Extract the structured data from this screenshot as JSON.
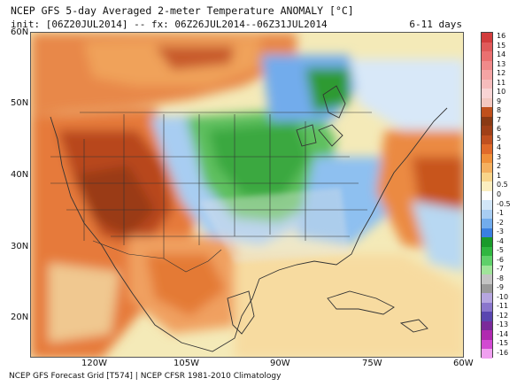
{
  "title": "NCEP GFS 5-day Averaged 2-meter Temperature ANOMALY [°C]",
  "subtitle": "init: [06Z20JUL2014] -- fx: 06Z26JUL2014--06Z31JUL2014",
  "range_label": "6-11 days",
  "credit": "NCEP GFS Forecast Grid [T574] | NCEP CFSR 1981-2010 Climatology",
  "lat_labels": [
    "60N",
    "50N",
    "40N",
    "30N",
    "20N"
  ],
  "lon_labels": [
    "120W",
    "105W",
    "90W",
    "75W",
    "60W"
  ],
  "colorbar": {
    "levels": [
      "16",
      "15",
      "14",
      "13",
      "12",
      "11",
      "10",
      "9",
      "8",
      "7",
      "6",
      "5",
      "4",
      "3",
      "2",
      "1",
      "0.5",
      "0",
      "-0.5",
      "-1",
      "-2",
      "-3",
      "-4",
      "-5",
      "-6",
      "-7",
      "-8",
      "-9",
      "-10",
      "-11",
      "-12",
      "-13",
      "-14",
      "-15",
      "-16"
    ],
    "colors": [
      "#d23c3c",
      "#e05a5a",
      "#ea7070",
      "#f08a8a",
      "#f4a4a4",
      "#f6bcbc",
      "#f9d4d4",
      "#f3c7bf",
      "#c0501c",
      "#8a3a14",
      "#a04018",
      "#c05020",
      "#e06a2a",
      "#f0903a",
      "#f4b060",
      "#f8d48a",
      "#fbeec0",
      "#ffffff",
      "#d2e6f8",
      "#a8cdf2",
      "#72acec",
      "#3a7fe0",
      "#1a9a2a",
      "#30b640",
      "#5fd06a",
      "#a0e49a",
      "#c4c4c4",
      "#9a9a9a",
      "#b6a6e0",
      "#8a76cc",
      "#5a46b0",
      "#7a2a9a",
      "#b02ab0",
      "#d24ad2",
      "#f0a0f0"
    ]
  }
}
